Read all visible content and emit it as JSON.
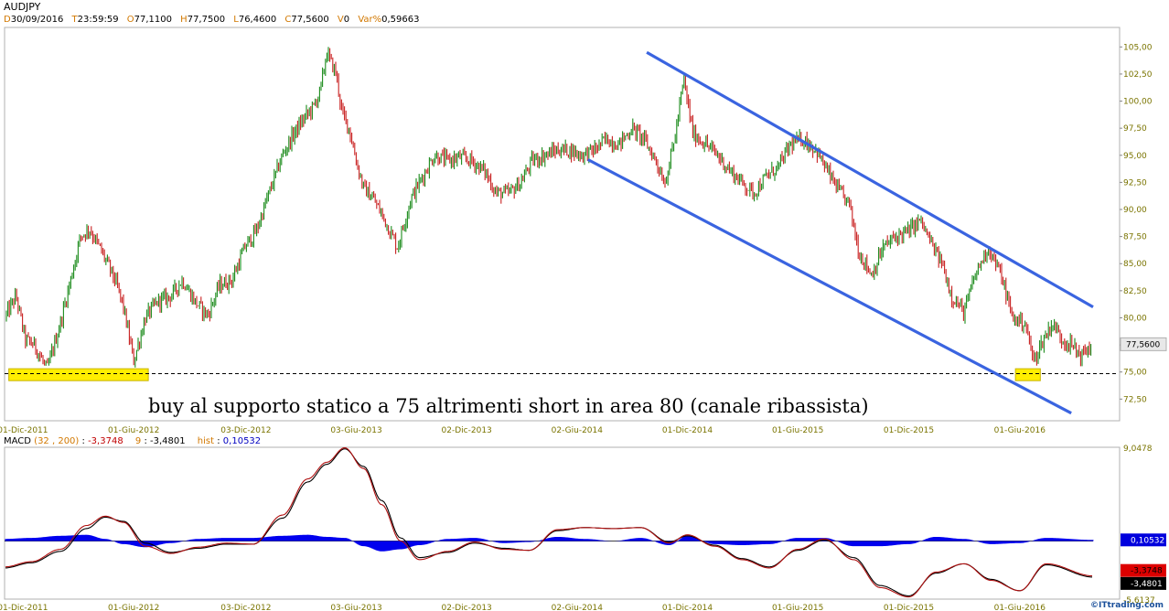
{
  "header": {
    "symbol": "AUDJPY",
    "date_key": "D",
    "date": "30/09/2016",
    "time_key": "T",
    "time": "23:59:59",
    "open_key": "O",
    "open": "77,1100",
    "high_key": "H",
    "high": "77,7500",
    "low_key": "L",
    "low": "76,4600",
    "close_key": "C",
    "close": "77,5600",
    "vol_key": "V",
    "vol": "0",
    "var_key": "Var%",
    "var": "0,59663"
  },
  "macd_header": {
    "label": "MACD",
    "params": "(32 , 200)",
    "sep": ":",
    "macd_value": "-3,3748",
    "signal_period": "9",
    "signal_sep": ":",
    "signal_value": "-3,4801",
    "hist_label": "hist",
    "hist_sep": ":",
    "hist_value": "0,10532"
  },
  "annotation": "buy al supporto statico a 75 altrimenti short in area 80 (canale ribassista)",
  "credit": "©ITtrading.com",
  "colors": {
    "up_bar": "#1a8a1a",
    "down_bar": "#c82020",
    "channel": "#3a64e0",
    "support_box": "#ffee00",
    "macd_line": "#b01010",
    "signal_line": "#000000",
    "histogram": "#0000ee",
    "axis_text": "#7a7400"
  },
  "chart_data": [
    {
      "type": "line",
      "title": "AUDJPY",
      "frequency": "daily OHLC bars",
      "x_range": [
        "2011-11-01",
        "2016-09-30"
      ],
      "x_ticks": [
        "01-Dic-2011",
        "01-Giu-2012",
        "03-Dic-2012",
        "03-Giu-2013",
        "02-Dic-2013",
        "02-Giu-2014",
        "01-Dic-2014",
        "01-Giu-2015",
        "01-Dic-2015",
        "01-Giu-2016"
      ],
      "y_ticks": [
        "105,00",
        "102,50",
        "100,00",
        "97,50",
        "95,00",
        "92,50",
        "90,00",
        "87,50",
        "85,00",
        "82,50",
        "80,00",
        "77,50",
        "75,00",
        "72,50"
      ],
      "ylim": [
        70.5,
        106.8
      ],
      "last_value_label": "77,5600",
      "last_value": 77.56,
      "series": [
        {
          "name": "AUDJPY",
          "x": [
            "2011-11-01",
            "2011-11-20",
            "2011-12-05",
            "2011-12-20",
            "2012-01-10",
            "2012-02-01",
            "2012-02-20",
            "2012-03-05",
            "2012-03-20",
            "2012-04-10",
            "2012-05-01",
            "2012-05-15",
            "2012-06-01",
            "2012-06-20",
            "2012-07-10",
            "2012-08-01",
            "2012-08-20",
            "2012-09-10",
            "2012-10-01",
            "2012-10-20",
            "2012-11-10",
            "2012-12-01",
            "2012-12-20",
            "2013-01-10",
            "2013-02-01",
            "2013-02-20",
            "2013-03-10",
            "2013-03-25",
            "2013-04-05",
            "2013-04-15",
            "2013-05-01",
            "2013-05-10",
            "2013-05-22",
            "2013-06-05",
            "2013-06-15",
            "2013-07-01",
            "2013-07-20",
            "2013-08-10",
            "2013-09-01",
            "2013-09-20",
            "2013-10-10",
            "2013-11-01",
            "2013-11-20",
            "2013-12-10",
            "2014-01-01",
            "2014-01-20",
            "2014-02-10",
            "2014-03-01",
            "2014-03-20",
            "2014-04-10",
            "2014-05-01",
            "2014-05-20",
            "2014-06-10",
            "2014-07-01",
            "2014-07-20",
            "2014-08-10",
            "2014-09-01",
            "2014-09-20",
            "2014-10-10",
            "2014-10-25",
            "2014-11-10",
            "2014-11-25",
            "2014-12-10",
            "2015-01-01",
            "2015-01-20",
            "2015-02-10",
            "2015-03-01",
            "2015-03-20",
            "2015-04-10",
            "2015-05-01",
            "2015-05-20",
            "2015-06-10",
            "2015-07-01",
            "2015-07-20",
            "2015-08-10",
            "2015-08-25",
            "2015-09-10",
            "2015-10-01",
            "2015-10-20",
            "2015-11-10",
            "2015-12-01",
            "2015-12-20",
            "2016-01-10",
            "2016-01-25",
            "2016-02-10",
            "2016-03-01",
            "2016-03-20",
            "2016-04-10",
            "2016-05-01",
            "2016-05-20",
            "2016-06-10",
            "2016-06-24",
            "2016-07-10",
            "2016-07-25",
            "2016-08-10",
            "2016-08-25",
            "2016-09-10",
            "2016-09-30"
          ],
          "values": [
            80.0,
            82.0,
            78.0,
            77.5,
            75.2,
            79.5,
            84.0,
            87.5,
            88.2,
            86.0,
            83.5,
            81.0,
            76.0,
            80.0,
            81.5,
            82.0,
            83.5,
            81.5,
            80.2,
            83.0,
            83.5,
            86.5,
            88.0,
            91.5,
            95.0,
            97.0,
            98.5,
            99.5,
            101.0,
            104.5,
            102.5,
            99.0,
            97.5,
            94.0,
            92.0,
            91.0,
            89.0,
            86.5,
            91.0,
            93.0,
            95.0,
            94.5,
            94.8,
            94.5,
            93.5,
            91.5,
            91.5,
            92.5,
            94.5,
            95.0,
            95.5,
            95.5,
            95.0,
            95.5,
            96.5,
            96.0,
            97.5,
            96.5,
            94.5,
            92.5,
            96.5,
            102.0,
            97.0,
            96.0,
            95.0,
            93.5,
            92.5,
            91.5,
            93.0,
            94.0,
            96.0,
            96.5,
            95.5,
            93.5,
            91.5,
            90.5,
            86.0,
            84.0,
            86.5,
            87.5,
            88.0,
            89.0,
            86.5,
            85.0,
            82.0,
            80.5,
            84.0,
            86.5,
            84.0,
            80.0,
            79.5,
            76.0,
            78.0,
            79.5,
            78.0,
            77.5,
            76.5,
            77.56
          ]
        }
      ]
    },
    {
      "type": "line",
      "title": "MACD (32 , 200)",
      "y_ticks": [
        "9,0478",
        "-5,6137"
      ],
      "ylim": [
        -5.61,
        9.05
      ],
      "value_labels": [
        "0,10532",
        "-3,3748",
        "-3,4801"
      ],
      "series": [
        {
          "name": "MACD",
          "x": [
            "2011-11-01",
            "2011-12-15",
            "2012-02-01",
            "2012-03-15",
            "2012-04-15",
            "2012-05-15",
            "2012-06-20",
            "2012-08-01",
            "2012-09-15",
            "2012-11-01",
            "2012-12-15",
            "2013-02-01",
            "2013-03-15",
            "2013-04-15",
            "2013-05-15",
            "2013-06-15",
            "2013-07-15",
            "2013-08-15",
            "2013-09-15",
            "2013-11-01",
            "2013-12-15",
            "2014-02-01",
            "2014-03-15",
            "2014-05-01",
            "2014-06-15",
            "2014-08-01",
            "2014-09-15",
            "2014-11-01",
            "2014-12-01",
            "2015-01-15",
            "2015-03-01",
            "2015-04-15",
            "2015-06-01",
            "2015-07-15",
            "2015-09-01",
            "2015-10-15",
            "2015-12-01",
            "2016-01-15",
            "2016-03-01",
            "2016-04-15",
            "2016-06-01",
            "2016-07-15",
            "2016-09-30"
          ],
          "values": [
            -2.5,
            -2.0,
            -0.8,
            1.5,
            2.4,
            1.8,
            -0.5,
            -1.2,
            -0.6,
            -0.2,
            -0.3,
            2.5,
            6.0,
            7.6,
            9.0,
            7.0,
            3.5,
            0.0,
            -1.8,
            -1.0,
            -0.1,
            -0.8,
            -0.9,
            1.1,
            1.3,
            1.2,
            1.3,
            -0.2,
            0.6,
            -0.5,
            -1.8,
            -2.6,
            -0.8,
            0.2,
            -1.8,
            -4.5,
            -5.4,
            -3.0,
            -2.2,
            -3.8,
            -4.8,
            -2.2,
            -3.37
          ]
        },
        {
          "name": "Signal",
          "x": [
            "2011-11-01",
            "2011-12-15",
            "2012-02-01",
            "2012-03-15",
            "2012-04-15",
            "2012-05-15",
            "2012-06-20",
            "2012-08-01",
            "2012-09-15",
            "2012-11-01",
            "2012-12-15",
            "2013-02-01",
            "2013-03-15",
            "2013-04-15",
            "2013-05-15",
            "2013-06-15",
            "2013-07-15",
            "2013-08-15",
            "2013-09-15",
            "2013-11-01",
            "2013-12-15",
            "2014-02-01",
            "2014-03-15",
            "2014-05-01",
            "2014-06-15",
            "2014-08-01",
            "2014-09-15",
            "2014-11-01",
            "2014-12-01",
            "2015-01-15",
            "2015-03-01",
            "2015-04-15",
            "2015-06-01",
            "2015-07-15",
            "2015-09-01",
            "2015-10-15",
            "2015-12-01",
            "2016-01-15",
            "2016-03-01",
            "2016-04-15",
            "2016-06-01",
            "2016-07-15",
            "2016-09-30"
          ],
          "values": [
            -2.6,
            -2.1,
            -1.0,
            1.2,
            2.3,
            1.9,
            -0.2,
            -1.1,
            -0.7,
            -0.3,
            -0.3,
            2.2,
            5.7,
            7.4,
            8.9,
            7.2,
            3.9,
            0.3,
            -1.6,
            -1.1,
            -0.2,
            -0.7,
            -0.9,
            1.0,
            1.3,
            1.2,
            1.3,
            -0.1,
            0.5,
            -0.4,
            -1.7,
            -2.5,
            -0.9,
            0.1,
            -1.6,
            -4.3,
            -5.3,
            -3.1,
            -2.2,
            -3.7,
            -4.8,
            -2.3,
            -3.48
          ]
        },
        {
          "name": "hist",
          "x": [
            "2011-11-01",
            "2011-12-15",
            "2012-02-01",
            "2012-03-15",
            "2012-04-15",
            "2012-05-15",
            "2012-06-20",
            "2012-08-01",
            "2012-09-15",
            "2012-11-01",
            "2012-12-15",
            "2013-02-01",
            "2013-03-15",
            "2013-04-15",
            "2013-05-15",
            "2013-06-15",
            "2013-07-15",
            "2013-08-15",
            "2013-09-15",
            "2013-11-01",
            "2013-12-15",
            "2014-02-01",
            "2014-03-15",
            "2014-05-01",
            "2014-06-15",
            "2014-08-01",
            "2014-09-15",
            "2014-11-01",
            "2014-12-01",
            "2015-01-15",
            "2015-03-01",
            "2015-04-15",
            "2015-06-01",
            "2015-07-15",
            "2015-09-01",
            "2015-10-15",
            "2015-12-01",
            "2016-01-15",
            "2016-03-01",
            "2016-04-15",
            "2016-06-01",
            "2016-07-15",
            "2016-09-30"
          ],
          "values": [
            0.2,
            0.3,
            0.5,
            0.6,
            0.2,
            -0.3,
            -0.6,
            -0.2,
            0.2,
            0.3,
            0.3,
            0.5,
            0.6,
            0.4,
            0.3,
            -0.5,
            -1.0,
            -0.8,
            -0.4,
            0.2,
            0.3,
            -0.2,
            -0.1,
            0.4,
            0.2,
            0.0,
            0.3,
            -0.4,
            0.5,
            -0.3,
            -0.4,
            -0.3,
            0.3,
            0.3,
            -0.5,
            -0.5,
            -0.3,
            0.4,
            0.2,
            -0.3,
            -0.2,
            0.3,
            0.105
          ]
        }
      ]
    }
  ],
  "overlays": {
    "support_level": 74.85,
    "channel_upper": {
      "x": [
        "2014-09-25",
        "2016-09-30"
      ],
      "y": [
        104.5,
        81.0
      ]
    },
    "channel_lower": {
      "x": [
        "2014-06-20",
        "2016-08-25"
      ],
      "y": [
        94.6,
        71.2
      ]
    },
    "support_boxes": [
      {
        "x": [
          "2011-11-08",
          "2012-06-25"
        ],
        "y": [
          74.2,
          75.3
        ]
      },
      {
        "x": [
          "2016-05-25",
          "2016-07-05"
        ],
        "y": [
          74.2,
          75.3
        ]
      }
    ]
  }
}
